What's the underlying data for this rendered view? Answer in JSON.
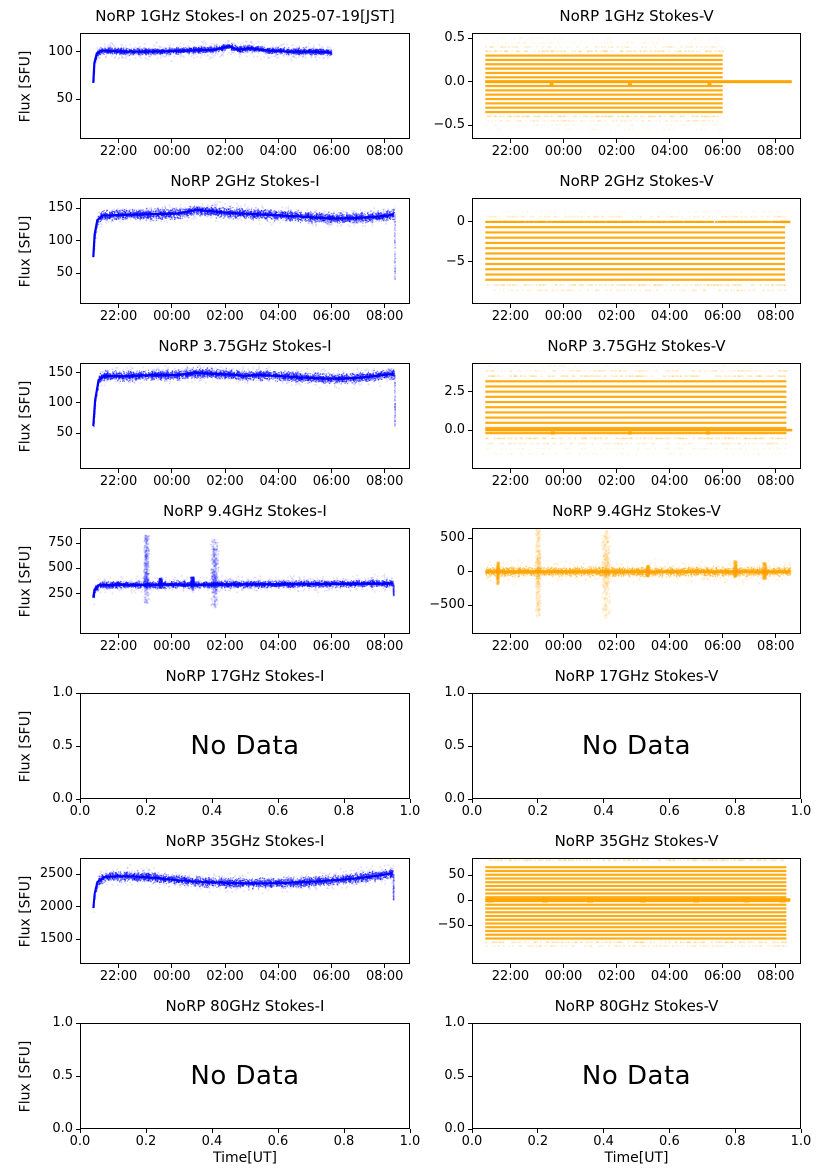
{
  "figure": {
    "background": "#ffffff",
    "stokes_i_color": "#0000ff",
    "stokes_v_color": "#ffa500",
    "x_note": "x values are hours on 2025-07-19 JST; 24 = midnight (00:00)"
  },
  "chart_data": [
    {
      "id": "norp-1ghz-stokes-i",
      "type": "scatter",
      "render": "line-noise",
      "seed": 101,
      "title": "NoRP 1GHz Stokes-I on 2025-07-19[JST]",
      "ylabel": "Flux [SFU]",
      "xlabel": null,
      "color": "#0000ff",
      "xlim": [
        20.55,
        32.95
      ],
      "ylim": [
        8,
        119.5
      ],
      "xticks": [
        22,
        24,
        26,
        28,
        30,
        32
      ],
      "xtick_labels": [
        "22:00",
        "00:00",
        "02:00",
        "04:00",
        "06:00",
        "08:00"
      ],
      "yticks": [
        50,
        100
      ],
      "ytick_labels": [
        "50",
        "100"
      ],
      "x_start": 21.05,
      "x_end": 30.0,
      "keypoints": [
        [
          21.05,
          67
        ],
        [
          21.09,
          88
        ],
        [
          21.18,
          98
        ],
        [
          21.35,
          101
        ],
        [
          22.2,
          100
        ],
        [
          23.5,
          100
        ],
        [
          24.6,
          101
        ],
        [
          25.6,
          102
        ],
        [
          26.15,
          105.5
        ],
        [
          26.5,
          102
        ],
        [
          26.95,
          103.5
        ],
        [
          27.6,
          101
        ],
        [
          28.4,
          100
        ],
        [
          29.2,
          100
        ],
        [
          30.0,
          99
        ]
      ],
      "noise": 3,
      "fuzz": 8,
      "line_width": 2.2,
      "spikes": [],
      "end_drop": null
    },
    {
      "id": "norp-1ghz-stokes-v",
      "type": "scatter",
      "render": "stripes",
      "seed": 202,
      "title": "NoRP 1GHz Stokes-V",
      "ylabel": null,
      "xlabel": null,
      "color": "#ffa500",
      "xlim": [
        20.55,
        32.95
      ],
      "ylim": [
        -0.66,
        0.56
      ],
      "xticks": [
        22,
        24,
        26,
        28,
        30,
        32
      ],
      "xtick_labels": [
        "22:00",
        "00:00",
        "02:00",
        "04:00",
        "06:00",
        "08:00"
      ],
      "yticks": [
        -0.5,
        0,
        0.5
      ],
      "ytick_labels": [
        "−0.5",
        "0.0",
        "0.5"
      ],
      "x_start": 21.05,
      "x_end": 30.0,
      "stripe_spacing": 0.05,
      "solid_range": [
        -0.35,
        0.3
      ],
      "sparse_range": [
        -0.55,
        0.5
      ],
      "semi_levels": [],
      "zero_line": {
        "start": 21.05,
        "end": 32.6,
        "width": 3
      },
      "nubs_below_zero": [
        23.55,
        26.5,
        29.5
      ],
      "zero_nubs": []
    },
    {
      "id": "norp-2ghz-stokes-i",
      "type": "scatter",
      "render": "line-noise",
      "seed": 303,
      "title": "NoRP 2GHz Stokes-I",
      "ylabel": "Flux [SFU]",
      "xlabel": null,
      "color": "#0000ff",
      "xlim": [
        20.55,
        32.95
      ],
      "ylim": [
        3,
        166
      ],
      "xticks": [
        22,
        24,
        26,
        28,
        30,
        32
      ],
      "xtick_labels": [
        "22:00",
        "00:00",
        "02:00",
        "04:00",
        "06:00",
        "08:00"
      ],
      "yticks": [
        50,
        100,
        150
      ],
      "ytick_labels": [
        "50",
        "100",
        "150"
      ],
      "x_start": 21.05,
      "x_end": 32.35,
      "keypoints": [
        [
          21.05,
          75
        ],
        [
          21.1,
          110
        ],
        [
          21.2,
          132
        ],
        [
          21.4,
          139
        ],
        [
          22.2,
          140
        ],
        [
          23.2,
          141
        ],
        [
          24.2,
          142
        ],
        [
          24.9,
          147.5
        ],
        [
          25.4,
          146
        ],
        [
          26.2,
          143
        ],
        [
          27.2,
          141
        ],
        [
          28.2,
          139
        ],
        [
          29.2,
          136.5
        ],
        [
          29.9,
          134.5
        ],
        [
          30.8,
          135
        ],
        [
          31.6,
          137
        ],
        [
          32.1,
          139
        ],
        [
          32.35,
          141
        ]
      ],
      "noise": 7,
      "fuzz": 12,
      "line_width": 2.2,
      "spikes": [],
      "end_drop": {
        "x": 32.36,
        "to": 40
      }
    },
    {
      "id": "norp-2ghz-stokes-v",
      "type": "scatter",
      "render": "stripes",
      "seed": 404,
      "title": "NoRP 2GHz Stokes-V",
      "ylabel": null,
      "xlabel": null,
      "color": "#ffa500",
      "xlim": [
        20.55,
        32.95
      ],
      "ylim": [
        -10.3,
        3.0
      ],
      "xticks": [
        22,
        24,
        26,
        28,
        30,
        32
      ],
      "xtick_labels": [
        "22:00",
        "00:00",
        "02:00",
        "04:00",
        "06:00",
        "08:00"
      ],
      "yticks": [
        -5,
        0
      ],
      "ytick_labels": [
        "−5",
        "0"
      ],
      "x_start": 21.05,
      "x_end": 32.35,
      "stripe_spacing": 0.66,
      "solid_range": [
        -7.26,
        -0.66
      ],
      "sparse_range": [
        -8.6,
        1.35
      ],
      "semi_levels": [
        0
      ],
      "zero_line": {
        "start": 32.2,
        "end": 32.55,
        "width": 2.5
      },
      "nubs_below_zero": [],
      "zero_nubs": []
    },
    {
      "id": "norp-3_75ghz-stokes-i",
      "type": "scatter",
      "render": "line-noise",
      "seed": 505,
      "title": "NoRP 3.75GHz Stokes-I",
      "ylabel": "Flux [SFU]",
      "xlabel": null,
      "color": "#0000ff",
      "xlim": [
        20.55,
        32.95
      ],
      "ylim": [
        -9,
        166
      ],
      "xticks": [
        22,
        24,
        26,
        28,
        30,
        32
      ],
      "xtick_labels": [
        "22:00",
        "00:00",
        "02:00",
        "04:00",
        "06:00",
        "08:00"
      ],
      "yticks": [
        50,
        100,
        150
      ],
      "ytick_labels": [
        "50",
        "100",
        "150"
      ],
      "x_start": 21.05,
      "x_end": 32.35,
      "keypoints": [
        [
          21.05,
          62
        ],
        [
          21.12,
          105
        ],
        [
          21.25,
          138
        ],
        [
          21.45,
          144.5
        ],
        [
          22.2,
          144
        ],
        [
          23.2,
          146
        ],
        [
          24.2,
          146
        ],
        [
          24.9,
          149.5
        ],
        [
          25.5,
          148
        ],
        [
          26.2,
          147
        ],
        [
          26.7,
          145
        ],
        [
          27.4,
          146
        ],
        [
          28.2,
          144
        ],
        [
          28.9,
          142
        ],
        [
          29.7,
          140.5
        ],
        [
          30.4,
          140
        ],
        [
          31.1,
          142
        ],
        [
          31.8,
          145.5
        ],
        [
          32.2,
          147.5
        ],
        [
          32.35,
          147
        ]
      ],
      "noise": 7,
      "fuzz": 13,
      "line_width": 2.2,
      "spikes": [],
      "end_drop": {
        "x": 32.36,
        "to": 60
      }
    },
    {
      "id": "norp-3_75ghz-stokes-v",
      "type": "scatter",
      "render": "stripes",
      "seed": 606,
      "title": "NoRP 3.75GHz Stokes-V",
      "ylabel": null,
      "xlabel": null,
      "color": "#ffa500",
      "xlim": [
        20.55,
        32.95
      ],
      "ylim": [
        -2.55,
        4.4
      ],
      "xticks": [
        22,
        24,
        26,
        28,
        30,
        32
      ],
      "xtick_labels": [
        "22:00",
        "00:00",
        "02:00",
        "04:00",
        "06:00",
        "08:00"
      ],
      "yticks": [
        0,
        2.5
      ],
      "ytick_labels": [
        "0.0",
        "2.5"
      ],
      "x_start": 21.05,
      "x_end": 32.4,
      "stripe_spacing": 0.34,
      "solid_range": [
        -0.2,
        3.2
      ],
      "sparse_range": [
        -1.85,
        4.25
      ],
      "semi_levels": [],
      "zero_line": {
        "start": 21.05,
        "end": 32.62,
        "width": 2.6
      },
      "nubs_below_zero": [
        23.6,
        26.5,
        29.45
      ],
      "zero_nubs": []
    },
    {
      "id": "norp-9_4ghz-stokes-i",
      "type": "scatter",
      "render": "line-noise",
      "seed": 707,
      "title": "NoRP 9.4GHz Stokes-I",
      "ylabel": "Flux [SFU]",
      "xlabel": null,
      "color": "#0000ff",
      "xlim": [
        20.55,
        32.95
      ],
      "ylim": [
        -150,
        900
      ],
      "xticks": [
        22,
        24,
        26,
        28,
        30,
        32
      ],
      "xtick_labels": [
        "22:00",
        "00:00",
        "02:00",
        "04:00",
        "06:00",
        "08:00"
      ],
      "yticks": [
        250,
        500,
        750
      ],
      "ytick_labels": [
        "250",
        "500",
        "750"
      ],
      "x_start": 21.05,
      "x_end": 32.3,
      "keypoints": [
        [
          21.05,
          210
        ],
        [
          21.1,
          290
        ],
        [
          21.25,
          332
        ],
        [
          22,
          338
        ],
        [
          23,
          336
        ],
        [
          24,
          340
        ],
        [
          25,
          338
        ],
        [
          26,
          340
        ],
        [
          27,
          342
        ],
        [
          28,
          342
        ],
        [
          29,
          344
        ],
        [
          30,
          346
        ],
        [
          31,
          348
        ],
        [
          32,
          350
        ],
        [
          32.3,
          352
        ]
      ],
      "noise": 30,
      "fuzz": 70,
      "line_width": 2.4,
      "spikes": [
        {
          "x": 23.02,
          "w": 0.12,
          "up": 830,
          "down": 150,
          "bias": 0.8
        },
        {
          "x": 23.55,
          "w": 0.07,
          "up": 400,
          "down": 300,
          "bias": 0.9
        },
        {
          "x": 24.75,
          "w": 0.08,
          "up": 415,
          "down": 280,
          "bias": 0.9
        },
        {
          "x": 25.58,
          "w": 0.16,
          "up": 790,
          "down": 110,
          "bias": 0.75
        }
      ],
      "end_drop": {
        "x": 32.31,
        "to": 230
      }
    },
    {
      "id": "norp-9_4ghz-stokes-v",
      "type": "scatter",
      "render": "line-noise",
      "seed": 808,
      "title": "NoRP 9.4GHz Stokes-V",
      "ylabel": null,
      "xlabel": null,
      "color": "#ffa500",
      "xlim": [
        20.55,
        32.95
      ],
      "ylim": [
        -930,
        654
      ],
      "xticks": [
        22,
        24,
        26,
        28,
        30,
        32
      ],
      "xtick_labels": [
        "22:00",
        "00:00",
        "02:00",
        "04:00",
        "06:00",
        "08:00"
      ],
      "yticks": [
        -500,
        0,
        500
      ],
      "ytick_labels": [
        "−500",
        "0",
        "500"
      ],
      "x_start": 21.05,
      "x_end": 32.55,
      "keypoints": [
        [
          21.05,
          0
        ],
        [
          32.55,
          0
        ]
      ],
      "noise": 60,
      "fuzz": 150,
      "line_width": 3,
      "spikes": [
        {
          "x": 21.5,
          "w": 0.07,
          "up": 150,
          "down": -190,
          "bias": 0.5
        },
        {
          "x": 23.02,
          "w": 0.12,
          "up": 640,
          "down": -680,
          "bias": 0.5
        },
        {
          "x": 25.58,
          "w": 0.18,
          "up": 620,
          "down": -700,
          "bias": 0.5
        },
        {
          "x": 27.15,
          "w": 0.08,
          "up": 95,
          "down": -75,
          "bias": 0.5
        },
        {
          "x": 30.45,
          "w": 0.09,
          "up": 165,
          "down": -85,
          "bias": 0.55
        },
        {
          "x": 31.55,
          "w": 0.09,
          "up": 140,
          "down": -115,
          "bias": 0.5
        }
      ],
      "end_drop": null
    },
    {
      "id": "norp-17ghz-stokes-i",
      "type": "scatter",
      "render": "empty",
      "seed": 909,
      "title": "NoRP 17GHz Stokes-I",
      "annotation": "No Data",
      "ylabel": "Flux [SFU]",
      "xlabel": null,
      "color": "#0000ff",
      "xlim": [
        0,
        1
      ],
      "ylim": [
        0,
        1
      ],
      "xticks": [
        0,
        0.2,
        0.4,
        0.6,
        0.8,
        1
      ],
      "xtick_labels": [
        "0.0",
        "0.2",
        "0.4",
        "0.6",
        "0.8",
        "1.0"
      ],
      "yticks": [
        0,
        0.5,
        1
      ],
      "ytick_labels": [
        "0.0",
        "0.5",
        "1.0"
      ]
    },
    {
      "id": "norp-17ghz-stokes-v",
      "type": "scatter",
      "render": "empty",
      "seed": 910,
      "title": "NoRP 17GHz Stokes-V",
      "annotation": "No Data",
      "ylabel": null,
      "xlabel": null,
      "color": "#ffa500",
      "xlim": [
        0,
        1
      ],
      "ylim": [
        0,
        1
      ],
      "xticks": [
        0,
        0.2,
        0.4,
        0.6,
        0.8,
        1
      ],
      "xtick_labels": [
        "0.0",
        "0.2",
        "0.4",
        "0.6",
        "0.8",
        "1.0"
      ],
      "yticks": [
        0,
        0.5,
        1
      ],
      "ytick_labels": [
        "0.0",
        "0.5",
        "1.0"
      ]
    },
    {
      "id": "norp-35ghz-stokes-i",
      "type": "scatter",
      "render": "line-noise",
      "seed": 111,
      "title": "NoRP 35GHz Stokes-I",
      "ylabel": "Flux [SFU]",
      "xlabel": null,
      "color": "#0000ff",
      "xlim": [
        20.55,
        32.95
      ],
      "ylim": [
        1120,
        2750
      ],
      "xticks": [
        22,
        24,
        26,
        28,
        30,
        32
      ],
      "xtick_labels": [
        "22:00",
        "00:00",
        "02:00",
        "04:00",
        "06:00",
        "08:00"
      ],
      "yticks": [
        1500,
        2000,
        2500
      ],
      "ytick_labels": [
        "1500",
        "2000",
        "2500"
      ],
      "x_start": 21.05,
      "x_end": 32.3,
      "keypoints": [
        [
          21.05,
          1980
        ],
        [
          21.1,
          2200
        ],
        [
          21.2,
          2380
        ],
        [
          21.45,
          2455
        ],
        [
          22,
          2470
        ],
        [
          22.7,
          2465
        ],
        [
          23.5,
          2440
        ],
        [
          24.3,
          2405
        ],
        [
          25.2,
          2380
        ],
        [
          26.2,
          2365
        ],
        [
          27.2,
          2360
        ],
        [
          28.2,
          2365
        ],
        [
          29.2,
          2385
        ],
        [
          30.2,
          2410
        ],
        [
          31,
          2440
        ],
        [
          31.7,
          2475
        ],
        [
          32.1,
          2505
        ],
        [
          32.3,
          2515
        ]
      ],
      "noise": 65,
      "fuzz": 130,
      "line_width": 2,
      "spikes": [],
      "end_drop": {
        "x": 32.31,
        "to": 2100
      }
    },
    {
      "id": "norp-35ghz-stokes-v",
      "type": "scatter",
      "render": "stripes",
      "seed": 112,
      "title": "NoRP 35GHz Stokes-V",
      "ylabel": null,
      "xlabel": null,
      "color": "#ffa500",
      "xlim": [
        20.55,
        32.95
      ],
      "ylim": [
        -128,
        84
      ],
      "xticks": [
        22,
        24,
        26,
        28,
        30,
        32
      ],
      "xtick_labels": [
        "22:00",
        "00:00",
        "02:00",
        "04:00",
        "06:00",
        "08:00"
      ],
      "yticks": [
        -50,
        0,
        50
      ],
      "ytick_labels": [
        "−50",
        "0",
        "50"
      ],
      "x_start": 21.05,
      "x_end": 32.4,
      "stripe_spacing": 7.5,
      "solid_range": [
        -77,
        72
      ],
      "sparse_range": [
        -96,
        83
      ],
      "semi_levels": [],
      "zero_line": {
        "start": 21.05,
        "end": 32.55,
        "width": 3.5
      },
      "nubs_below_zero": [],
      "zero_nubs": [
        21.25,
        23.3,
        25.0,
        27.0,
        29.0,
        30.9,
        32.25
      ]
    },
    {
      "id": "norp-80ghz-stokes-i",
      "type": "scatter",
      "render": "empty",
      "seed": 113,
      "title": "NoRP 80GHz Stokes-I",
      "annotation": "No Data",
      "ylabel": "Flux [SFU]",
      "xlabel": "Time[UT]",
      "color": "#0000ff",
      "xlim": [
        0,
        1
      ],
      "ylim": [
        0,
        1
      ],
      "xticks": [
        0,
        0.2,
        0.4,
        0.6,
        0.8,
        1
      ],
      "xtick_labels": [
        "0.0",
        "0.2",
        "0.4",
        "0.6",
        "0.8",
        "1.0"
      ],
      "yticks": [
        0,
        0.5,
        1
      ],
      "ytick_labels": [
        "0.0",
        "0.5",
        "1.0"
      ]
    },
    {
      "id": "norp-80ghz-stokes-v",
      "type": "scatter",
      "render": "empty",
      "seed": 114,
      "title": "NoRP 80GHz Stokes-V",
      "annotation": "No Data",
      "ylabel": null,
      "xlabel": "Time[UT]",
      "color": "#ffa500",
      "xlim": [
        0,
        1
      ],
      "ylim": [
        0,
        1
      ],
      "xticks": [
        0,
        0.2,
        0.4,
        0.6,
        0.8,
        1
      ],
      "xtick_labels": [
        "0.0",
        "0.2",
        "0.4",
        "0.6",
        "0.8",
        "1.0"
      ],
      "yticks": [
        0,
        0.5,
        1
      ],
      "ytick_labels": [
        "0.0",
        "0.5",
        "1.0"
      ]
    }
  ]
}
